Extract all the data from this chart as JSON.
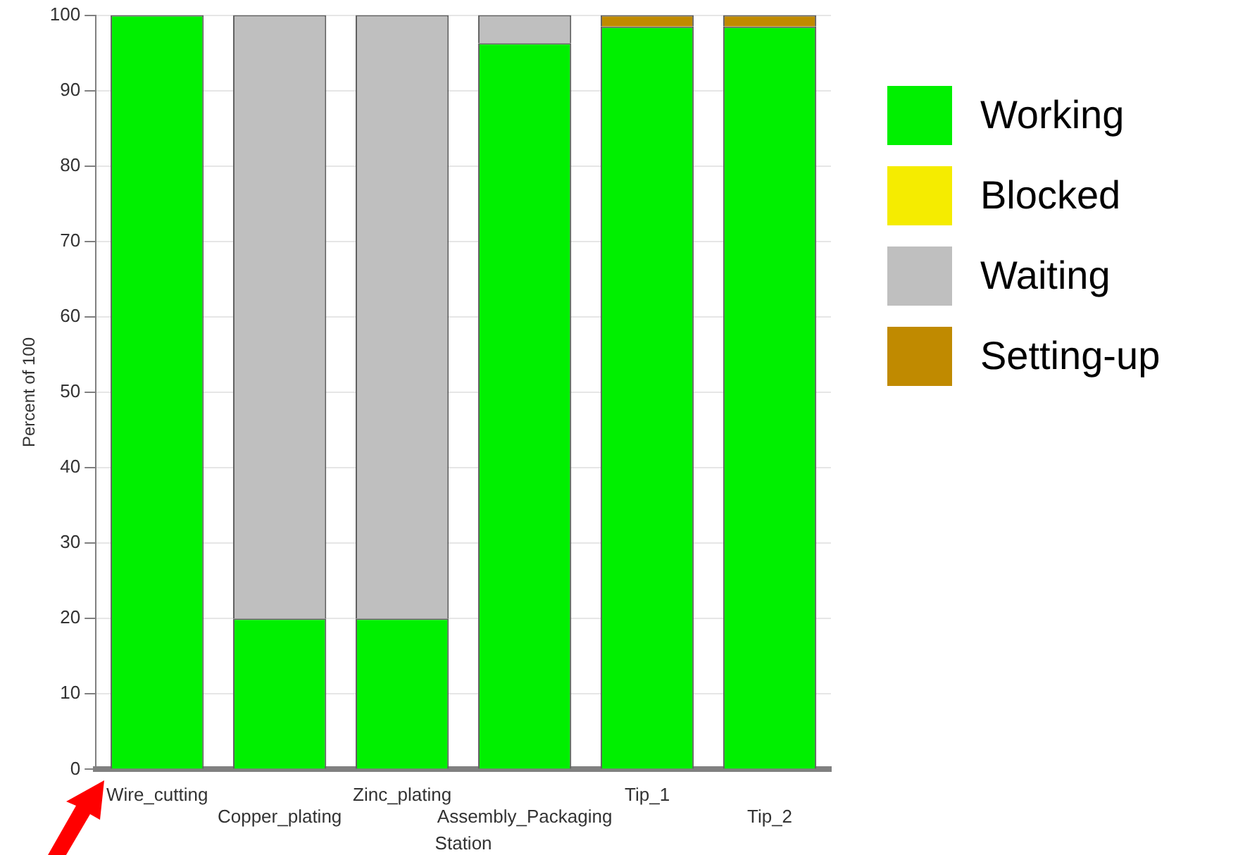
{
  "chart_data": {
    "type": "bar",
    "stacked": true,
    "xlabel": "Station",
    "ylabel": "Percent of 100",
    "categories": [
      "Wire_cutting",
      "Copper_plating",
      "Zinc_plating",
      "Assembly_Packaging",
      "Tip_1",
      "Tip_2"
    ],
    "series": [
      {
        "name": "Working",
        "color": "#00f000",
        "values": [
          100,
          20,
          20,
          96.3,
          98.5,
          98.5
        ]
      },
      {
        "name": "Blocked",
        "color": "#f5ec00",
        "values": [
          0,
          0,
          0,
          0,
          0,
          0
        ]
      },
      {
        "name": "Waiting",
        "color": "#bfbfbf",
        "values": [
          0,
          80,
          80,
          3.7,
          0,
          0
        ]
      },
      {
        "name": "Setting-up",
        "color": "#c08a00",
        "values": [
          0,
          0,
          0,
          0,
          1.5,
          1.5
        ]
      }
    ],
    "ylim": [
      0,
      100
    ],
    "yticks": [
      0,
      10,
      20,
      30,
      40,
      50,
      60,
      70,
      80,
      90,
      100
    ],
    "grid": "y",
    "legend": "top right"
  }
}
